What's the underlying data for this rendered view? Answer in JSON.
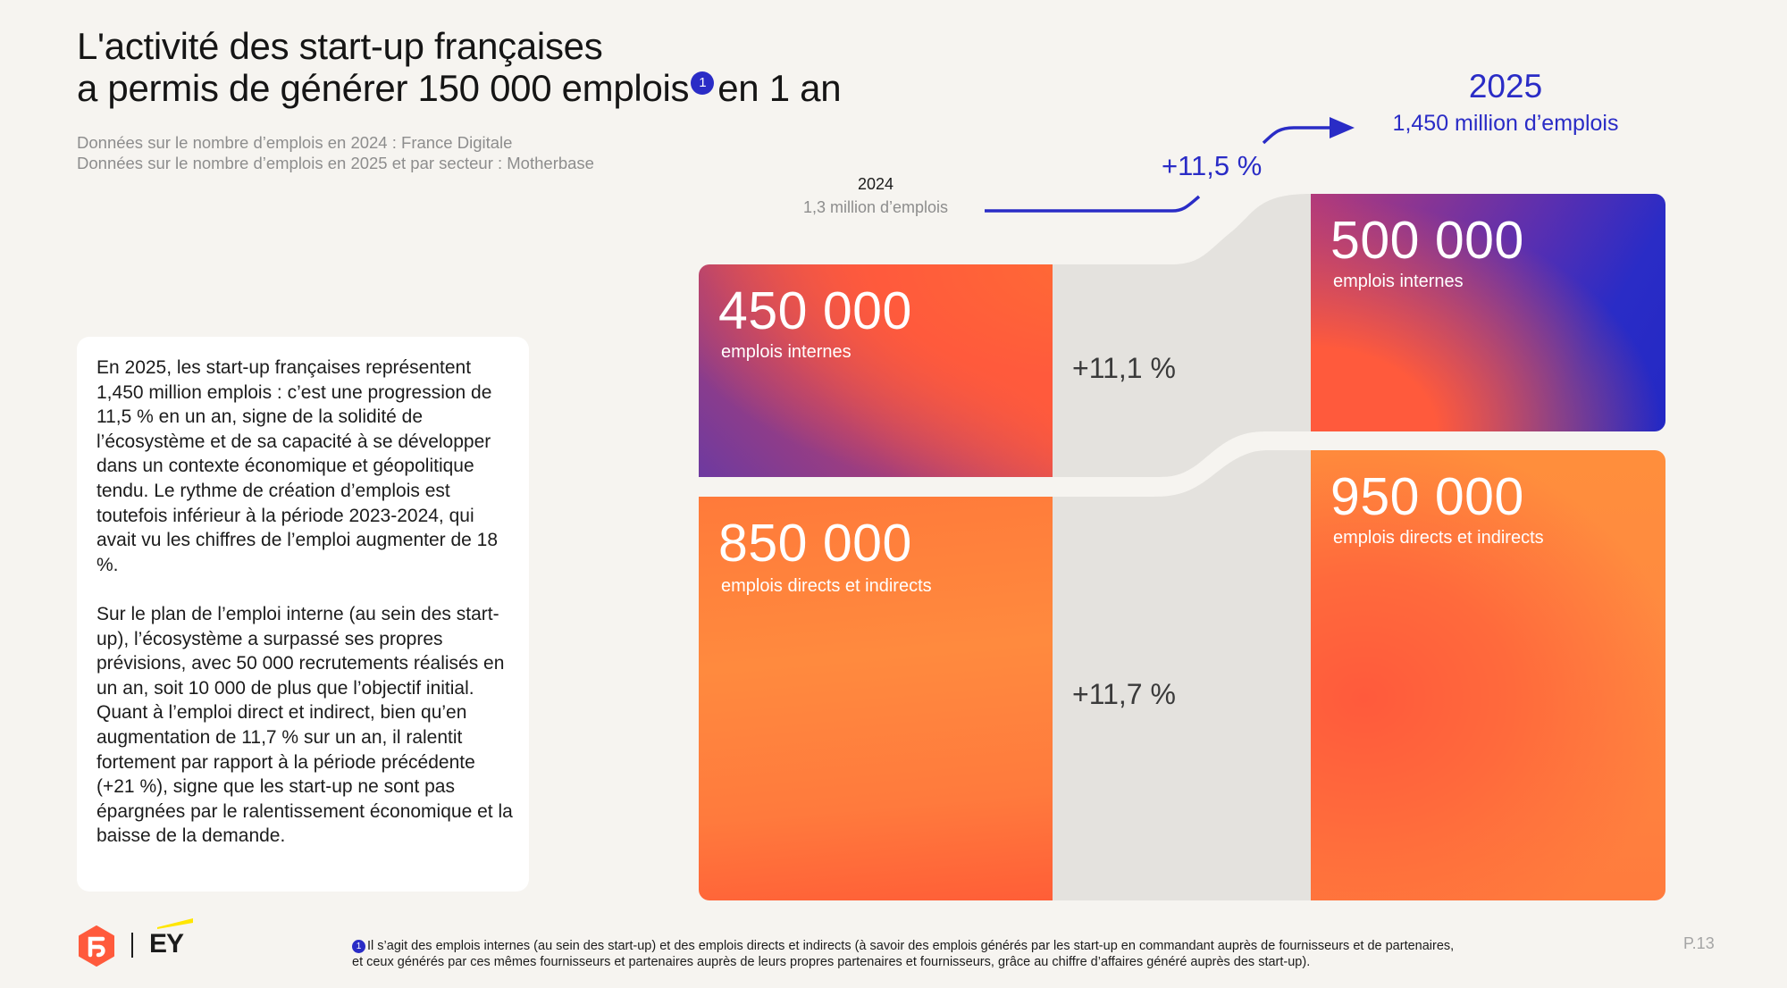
{
  "header": {
    "title_line1": "L'activité des start-up françaises",
    "title_line2_start": "a permis de générer 150 000 emplois",
    "title_footnote_marker": "1",
    "title_line2_end": "en 1 an",
    "source_1": "Données sur le nombre d’emplois en 2024 : France Digitale",
    "source_2": "Données sur le nombre d’emplois en 2025 et par secteur : Motherbase"
  },
  "card": {
    "paragraph_1": "En 2025, les start-up françaises représentent 1,450 million emplois : c’est une progression de 11,5 % en un an, signe de la solidité de l’écosystème et de sa capacité à se développer dans un contexte économique et géopolitique tendu. Le rythme de création d’emplois est toutefois inférieur à la période 2023-2024, qui avait vu les chiffres de l’emploi augmenter de 18 %.",
    "paragraph_2": "Sur le plan de l’emploi interne (au sein des start-up), l’écosystème a surpassé ses propres prévisions, avec 50 000 recrutements réalisés en un an, soit 10 000 de plus que l’objectif initial. Quant à l’emploi direct et indirect, bien qu’en augmentation de 11,7 % sur un an, il ralentit fortement par rapport à la période précédente (+21 %), signe que les start-up ne sont pas épargnées par le ralentissement économique et la baisse de la demande."
  },
  "diagram": {
    "year_2024": "2024",
    "year_2024_total": "1,3 million d’emplois",
    "overall_growth": "+11,5 %",
    "year_2025": "2025",
    "year_2025_total": "1,450 million d’emplois",
    "blocks_2024": [
      {
        "value": "450 000",
        "label": "emplois internes"
      },
      {
        "value": "850 000",
        "label": "emplois directs et indirects"
      }
    ],
    "blocks_2025": [
      {
        "value": "500 000",
        "label": "emplois internes"
      },
      {
        "value": "950 000",
        "label": "emplois directs et indirects"
      }
    ],
    "growth_internal": "+11,1 %",
    "growth_direct_indirect": "+11,7 %",
    "colors": {
      "blue": "#2a2cc6",
      "orange": "#ff8a3e",
      "red_orange": "#ff5a3c",
      "purple": "#6d3aa0",
      "flow_grey": "#e4e2de"
    }
  },
  "footer": {
    "ey_logo": "EY",
    "footnote_marker": "1",
    "footnote_line1": "Il s’agit des emplois internes (au sein des start-up) et des emplois directs et indirects (à savoir des emplois générés par les start-up en commandant auprès de fournisseurs et de partenaires,",
    "footnote_line2": "et ceux générés par ces mêmes fournisseurs et partenaires auprès de leurs propres partenaires et fournisseurs, grâce au chiffre d’affaires généré auprès des start-up).",
    "page_number": "P.13"
  }
}
